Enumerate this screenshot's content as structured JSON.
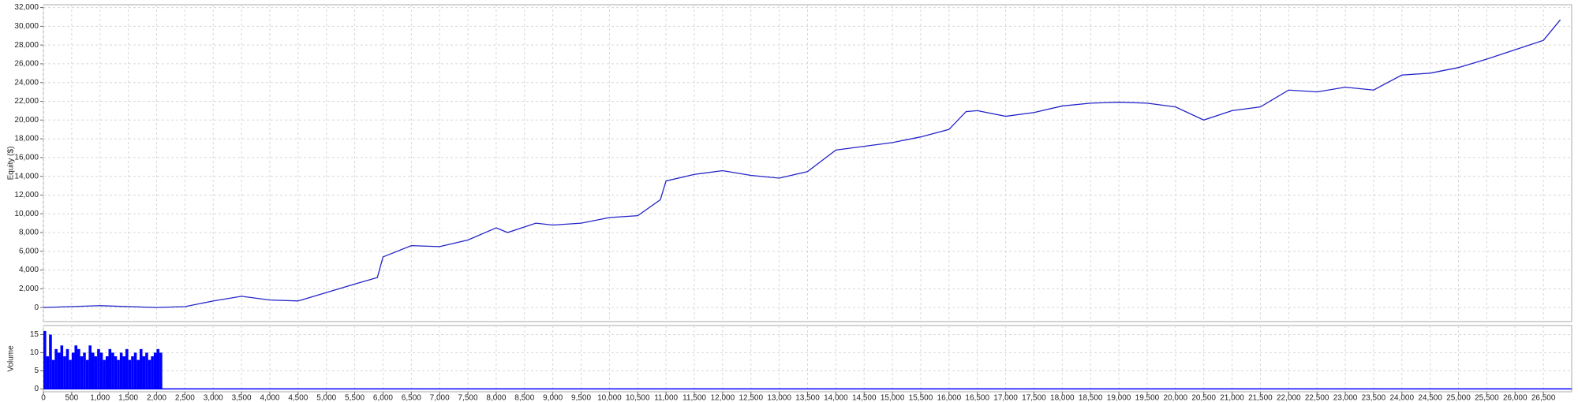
{
  "chart_data": [
    {
      "type": "line",
      "y_label": "Equity ($)",
      "grid": true,
      "xlim": [
        0,
        27000
      ],
      "ylim": [
        -1500,
        32300
      ],
      "yticks": [
        0,
        {
          "value": 2000,
          "label": "2,000"
        },
        {
          "value": 4000,
          "label": "4,000"
        },
        {
          "value": 6000,
          "label": "6,000"
        },
        {
          "value": 8000,
          "label": "8,000"
        },
        {
          "value": 10000,
          "label": "10,000"
        },
        {
          "value": 12000,
          "label": "12,000"
        },
        {
          "value": 14000,
          "label": "14,000"
        },
        {
          "value": 16000,
          "label": "16,000"
        },
        {
          "value": 18000,
          "label": "18,000"
        },
        {
          "value": 20000,
          "label": "20,000"
        },
        {
          "value": 22000,
          "label": "22,000"
        },
        {
          "value": 24000,
          "label": "24,000"
        },
        {
          "value": 26000,
          "label": "26,000"
        },
        {
          "value": 28000,
          "label": "28,000"
        },
        {
          "value": 30000,
          "label": "30,000"
        },
        {
          "value": 32000,
          "label": "32,000"
        }
      ],
      "x": [
        0,
        1000,
        2000,
        2500,
        3000,
        3500,
        4000,
        4500,
        5000,
        5500,
        5900,
        6000,
        6500,
        7000,
        7500,
        8000,
        8200,
        8700,
        9000,
        9500,
        10000,
        10500,
        10900,
        11000,
        11500,
        12000,
        12500,
        13000,
        13500,
        14000,
        14500,
        15000,
        15500,
        16000,
        16300,
        16500,
        17000,
        17500,
        18000,
        18500,
        19000,
        19500,
        20000,
        20500,
        21000,
        21500,
        22000,
        22500,
        23000,
        23500,
        24000,
        24500,
        25000,
        25500,
        26000,
        26500,
        26800
      ],
      "series": [
        {
          "color": "#2323c8",
          "values": [
            0,
            200,
            0,
            100,
            700,
            1200,
            800,
            700,
            1600,
            2500,
            3200,
            5400,
            6600,
            6500,
            7200,
            8500,
            8000,
            9000,
            8800,
            9000,
            9600,
            9800,
            11500,
            13500,
            14200,
            14600,
            14100,
            13800,
            14500,
            16800,
            17200,
            17600,
            18200,
            19000,
            20900,
            21000,
            20400,
            20800,
            21500,
            21800,
            21900,
            21800,
            21400,
            20000,
            21000,
            21400,
            23200,
            23000,
            23500,
            23200,
            24800,
            25000,
            25600,
            26500,
            27500,
            28500,
            30700
          ]
        }
      ]
    },
    {
      "type": "bar",
      "y_label": "Volume",
      "color": "#0000ff",
      "grid": true,
      "xlim": [
        0,
        27000
      ],
      "ylim": [
        -0.8,
        17.5
      ],
      "yticks": [
        0,
        5,
        10,
        15
      ],
      "x": [
        0,
        50,
        100,
        150,
        200,
        250,
        300,
        350,
        400,
        450,
        500,
        550,
        600,
        650,
        700,
        750,
        800,
        850,
        900,
        950,
        1000,
        1050,
        1100,
        1150,
        1200,
        1250,
        1300,
        1350,
        1400,
        1450,
        1500,
        1550,
        1600,
        1650,
        1700,
        1750,
        1800,
        1850,
        1900,
        1950,
        2000,
        2050
      ],
      "values": [
        16,
        9,
        15,
        8,
        11,
        10,
        12,
        9,
        11,
        8,
        10,
        12,
        11,
        9,
        10,
        8,
        12,
        10,
        9,
        11,
        10,
        8,
        9,
        11,
        10,
        9,
        8,
        10,
        9,
        11,
        8,
        9,
        10,
        8,
        11,
        9,
        10,
        8,
        9,
        10,
        11,
        10
      ],
      "xticks": [
        0,
        500,
        {
          "value": 1000,
          "label": "1,000"
        },
        {
          "value": 1500,
          "label": "1,500"
        },
        {
          "value": 2000,
          "label": "2,000"
        },
        {
          "value": 2500,
          "label": "2,500"
        },
        {
          "value": 3000,
          "label": "3,000"
        },
        {
          "value": 3500,
          "label": "3,500"
        },
        {
          "value": 4000,
          "label": "4,000"
        },
        {
          "value": 4500,
          "label": "4,500"
        },
        {
          "value": 5000,
          "label": "5,000"
        },
        {
          "value": 5500,
          "label": "5,500"
        },
        {
          "value": 6000,
          "label": "6,000"
        },
        {
          "value": 6500,
          "label": "6,500"
        },
        {
          "value": 7000,
          "label": "7,000"
        },
        {
          "value": 7500,
          "label": "7,500"
        },
        {
          "value": 8000,
          "label": "8,000"
        },
        {
          "value": 8500,
          "label": "8,500"
        },
        {
          "value": 9000,
          "label": "9,000"
        },
        {
          "value": 9500,
          "label": "9,500"
        },
        {
          "value": 10000,
          "label": "10,000"
        },
        {
          "value": 10500,
          "label": "10,500"
        },
        {
          "value": 11000,
          "label": "11,000"
        },
        {
          "value": 11500,
          "label": "11,500"
        },
        {
          "value": 12000,
          "label": "12,000"
        },
        {
          "value": 12500,
          "label": "12,500"
        },
        {
          "value": 13000,
          "label": "13,000"
        },
        {
          "value": 13500,
          "label": "13,500"
        },
        {
          "value": 14000,
          "label": "14,000"
        },
        {
          "value": 14500,
          "label": "14,500"
        },
        {
          "value": 15000,
          "label": "15,000"
        },
        {
          "value": 15500,
          "label": "15,500"
        },
        {
          "value": 16000,
          "label": "16,000"
        },
        {
          "value": 16500,
          "label": "16,500"
        },
        {
          "value": 17000,
          "label": "17,000"
        },
        {
          "value": 17500,
          "label": "17,500"
        },
        {
          "value": 18000,
          "label": "18,000"
        },
        {
          "value": 18500,
          "label": "18,500"
        },
        {
          "value": 19000,
          "label": "19,000"
        },
        {
          "value": 19500,
          "label": "19,500"
        },
        {
          "value": 20000,
          "label": "20,000"
        },
        {
          "value": 20500,
          "label": "20,500"
        },
        {
          "value": 21000,
          "label": "21,000"
        },
        {
          "value": 21500,
          "label": "21,500"
        },
        {
          "value": 22000,
          "label": "22,000"
        },
        {
          "value": 22500,
          "label": "22,500"
        },
        {
          "value": 23000,
          "label": "23,000"
        },
        {
          "value": 23500,
          "label": "23,500"
        },
        {
          "value": 24000,
          "label": "24,000"
        },
        {
          "value": 24500,
          "label": "24,500"
        },
        {
          "value": 25000,
          "label": "25,000"
        },
        {
          "value": 25500,
          "label": "25,500"
        },
        {
          "value": 26000,
          "label": "26,000"
        },
        {
          "value": 26500,
          "label": "26,500"
        }
      ]
    }
  ]
}
